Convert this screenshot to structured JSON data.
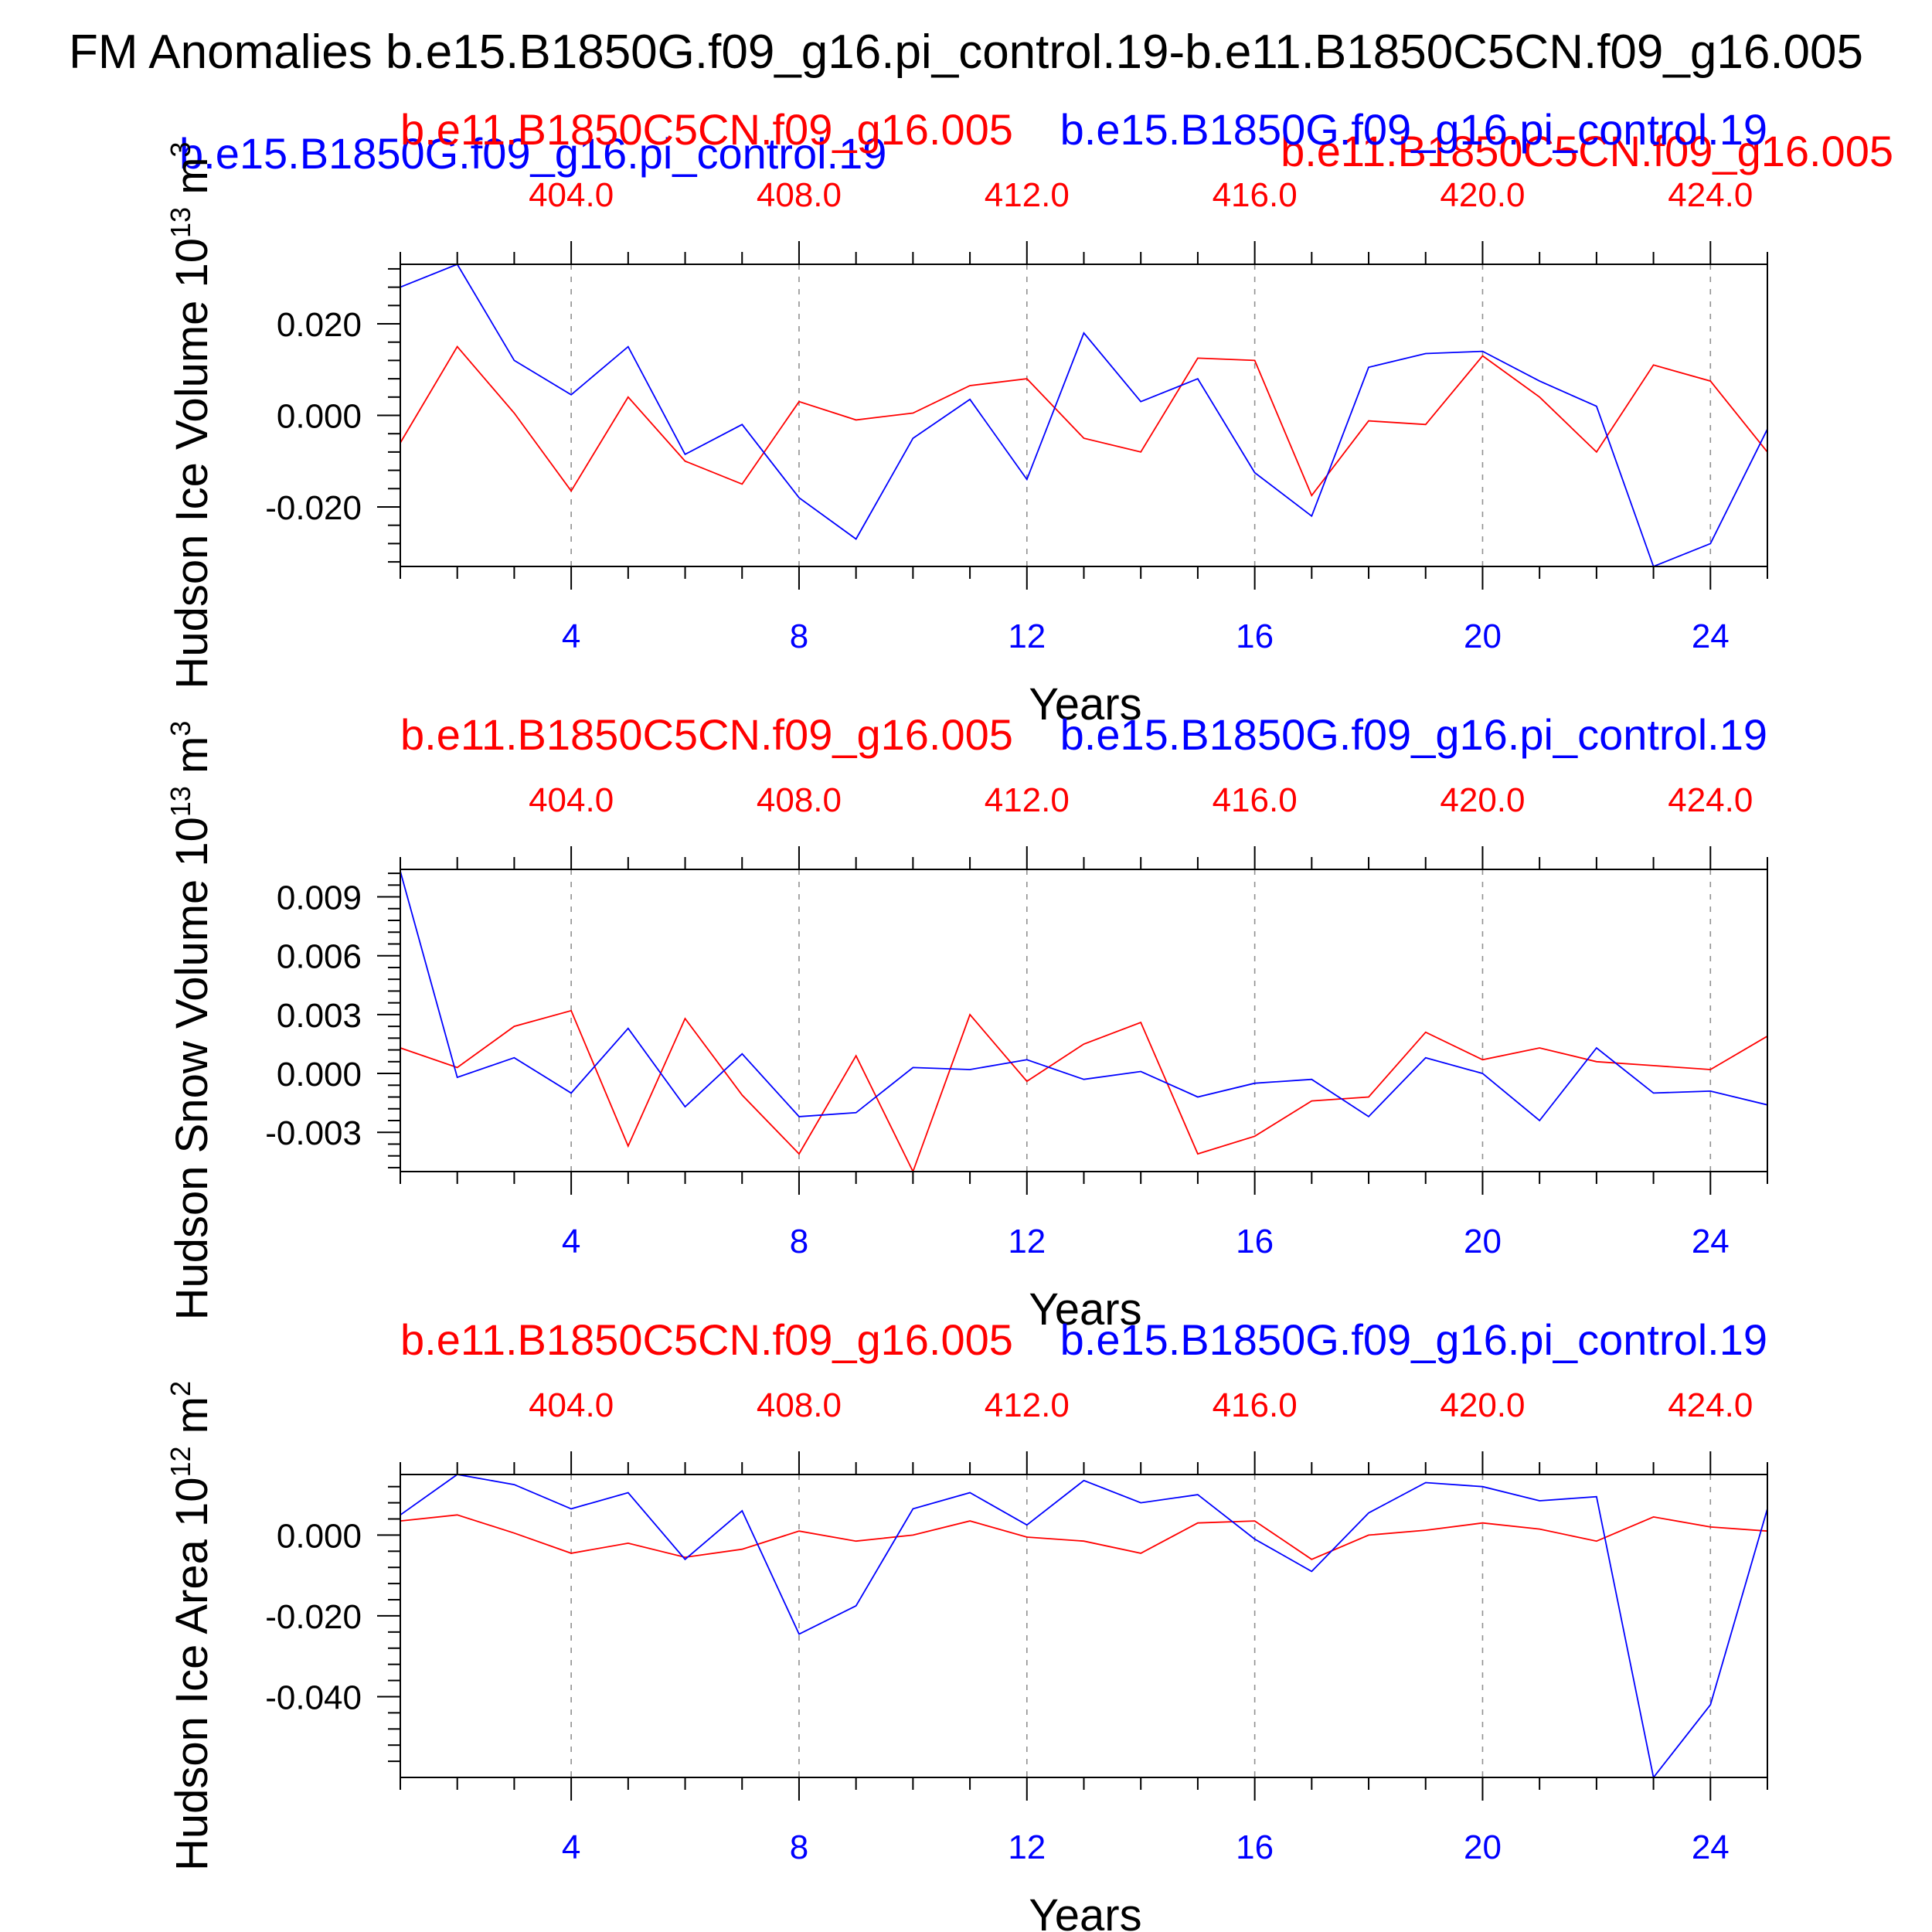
{
  "figure": {
    "main_title": "FM Anomalies b.e15.B1850G.f09_g16.pi_control.19-b.e11.B1850C5CN.f09_g16.005",
    "colors": {
      "series_blue": "#0000ff",
      "series_red": "#ff0000",
      "axis": "#000000",
      "grid": "#909090"
    }
  },
  "chart_data": [
    {
      "type": "line",
      "ylabel": "Hudson Ice Volume",
      "yunits": "10^13 m^3",
      "xlabel": "Years",
      "top_left_label": "b.e11.B1850C5CN.f09_g16.005",
      "top_right_label": "b.e15.B1850G.f09_g16.pi_control.19",
      "legend": [
        "b.e15.B1850G.f09_g16.pi_control.19",
        "b.e11.B1850C5CN.f09_g16.005"
      ],
      "x_bottom_ticks": [
        "4",
        "8",
        "12",
        "16",
        "20",
        "24"
      ],
      "x_top_ticks": [
        "404.0",
        "408.0",
        "412.0",
        "416.0",
        "420.0",
        "424.0"
      ],
      "y_tick_labels": [
        "0.020",
        "0.000",
        "-0.020"
      ],
      "y_tick_values": [
        0.02,
        0.0,
        -0.02
      ],
      "ylim": [
        -0.033,
        0.033
      ],
      "xlim": [
        1,
        25
      ],
      "x": [
        1,
        2,
        3,
        4,
        5,
        6,
        7,
        8,
        9,
        10,
        11,
        12,
        13,
        14,
        15,
        16,
        17,
        18,
        19,
        20,
        21,
        22,
        23,
        24,
        25
      ],
      "series": [
        {
          "name": "b.e15.B1850G.f09_g16.pi_control.19",
          "color": "#0000ff",
          "values": [
            0.028,
            0.033,
            0.012,
            0.0045,
            0.015,
            -0.0085,
            -0.002,
            -0.018,
            -0.027,
            -0.005,
            0.0035,
            -0.014,
            0.018,
            0.003,
            0.008,
            -0.0125,
            -0.022,
            0.0105,
            0.0135,
            0.014,
            0.0075,
            0.002,
            -0.033,
            -0.028,
            -0.003
          ]
        },
        {
          "name": "b.e11.B1850C5CN.f09_g16.005",
          "color": "#ff0000",
          "values": [
            -0.006,
            0.015,
            0.0005,
            -0.0165,
            0.004,
            -0.01,
            -0.015,
            0.003,
            -0.001,
            0.0005,
            0.0065,
            0.008,
            -0.005,
            -0.008,
            0.0125,
            0.012,
            -0.0175,
            -0.0012,
            -0.002,
            0.013,
            0.004,
            -0.008,
            0.011,
            0.0075,
            -0.008
          ]
        }
      ]
    },
    {
      "type": "line",
      "ylabel": "Hudson Snow Volume",
      "yunits": "10^13 m^3",
      "xlabel": "Years",
      "top_left_label": "b.e11.B1850C5CN.f09_g16.005",
      "top_right_label": "b.e15.B1850G.f09_g16.pi_control.19",
      "x_bottom_ticks": [
        "4",
        "8",
        "12",
        "16",
        "20",
        "24"
      ],
      "x_top_ticks": [
        "404.0",
        "408.0",
        "412.0",
        "416.0",
        "420.0",
        "424.0"
      ],
      "y_tick_labels": [
        "0.009",
        "0.006",
        "0.003",
        "0.000",
        "-0.003"
      ],
      "y_tick_values": [
        0.009,
        0.006,
        0.003,
        0.0,
        -0.003
      ],
      "ylim": [
        -0.005,
        0.0104
      ],
      "xlim": [
        1,
        25
      ],
      "x": [
        1,
        2,
        3,
        4,
        5,
        6,
        7,
        8,
        9,
        10,
        11,
        12,
        13,
        14,
        15,
        16,
        17,
        18,
        19,
        20,
        21,
        22,
        23,
        24,
        25
      ],
      "series": [
        {
          "name": "b.e15.B1850G.f09_g16.pi_control.19",
          "color": "#0000ff",
          "values": [
            0.0103,
            -0.0002,
            0.0008,
            -0.001,
            0.0023,
            -0.0017,
            0.001,
            -0.0022,
            -0.002,
            0.0003,
            0.0002,
            0.0007,
            -0.0003,
            0.0001,
            -0.0012,
            -0.0005,
            -0.0003,
            -0.0022,
            0.0008,
            0.0,
            -0.0024,
            0.0013,
            -0.001,
            -0.0009,
            -0.0016
          ]
        },
        {
          "name": "b.e11.B1850C5CN.f09_g16.005",
          "color": "#ff0000",
          "values": [
            0.0013,
            0.0003,
            0.0024,
            0.0032,
            -0.0037,
            0.0028,
            -0.0011,
            -0.0041,
            0.0009,
            -0.005,
            0.003,
            -0.0004,
            0.0015,
            0.0026,
            -0.0041,
            -0.0032,
            -0.0014,
            -0.0012,
            0.0021,
            0.0007,
            0.0013,
            0.0006,
            0.0004,
            0.0002,
            0.0019
          ]
        }
      ]
    },
    {
      "type": "line",
      "ylabel": "Hudson Ice Area",
      "yunits": "10^12 m^2",
      "xlabel": "Years",
      "top_left_label": "b.e11.B1850C5CN.f09_g16.005",
      "top_right_label": "b.e15.B1850G.f09_g16.pi_control.19",
      "x_bottom_ticks": [
        "4",
        "8",
        "12",
        "16",
        "20",
        "24"
      ],
      "x_top_ticks": [
        "404.0",
        "408.0",
        "412.0",
        "416.0",
        "420.0",
        "424.0"
      ],
      "y_tick_labels": [
        "0.000",
        "-0.020",
        "-0.040"
      ],
      "y_tick_values": [
        0.0,
        -0.02,
        -0.04
      ],
      "ylim": [
        -0.06,
        0.015
      ],
      "xlim": [
        1,
        25
      ],
      "x": [
        1,
        2,
        3,
        4,
        5,
        6,
        7,
        8,
        9,
        10,
        11,
        12,
        13,
        14,
        15,
        16,
        17,
        18,
        19,
        20,
        21,
        22,
        23,
        24,
        25
      ],
      "series": [
        {
          "name": "b.e15.B1850G.f09_g16.pi_control.19",
          "color": "#0000ff",
          "values": [
            0.005,
            0.015,
            0.0125,
            0.0065,
            0.0105,
            -0.006,
            0.006,
            -0.0245,
            -0.0175,
            0.0065,
            0.0105,
            0.0025,
            0.0135,
            0.008,
            0.01,
            -0.001,
            -0.009,
            0.0055,
            0.013,
            0.012,
            0.0085,
            0.0095,
            -0.06,
            -0.042,
            0.0065
          ]
        },
        {
          "name": "b.e11.B1850C5CN.f09_g16.005",
          "color": "#ff0000",
          "values": [
            0.0035,
            0.005,
            0.0005,
            -0.0045,
            -0.002,
            -0.0055,
            -0.0035,
            0.001,
            -0.0015,
            0.0,
            0.0035,
            -0.0005,
            -0.0015,
            -0.0045,
            0.003,
            0.0035,
            -0.006,
            0.0,
            0.0012,
            0.003,
            0.0015,
            -0.0015,
            0.0045,
            0.002,
            0.001
          ]
        }
      ]
    }
  ]
}
